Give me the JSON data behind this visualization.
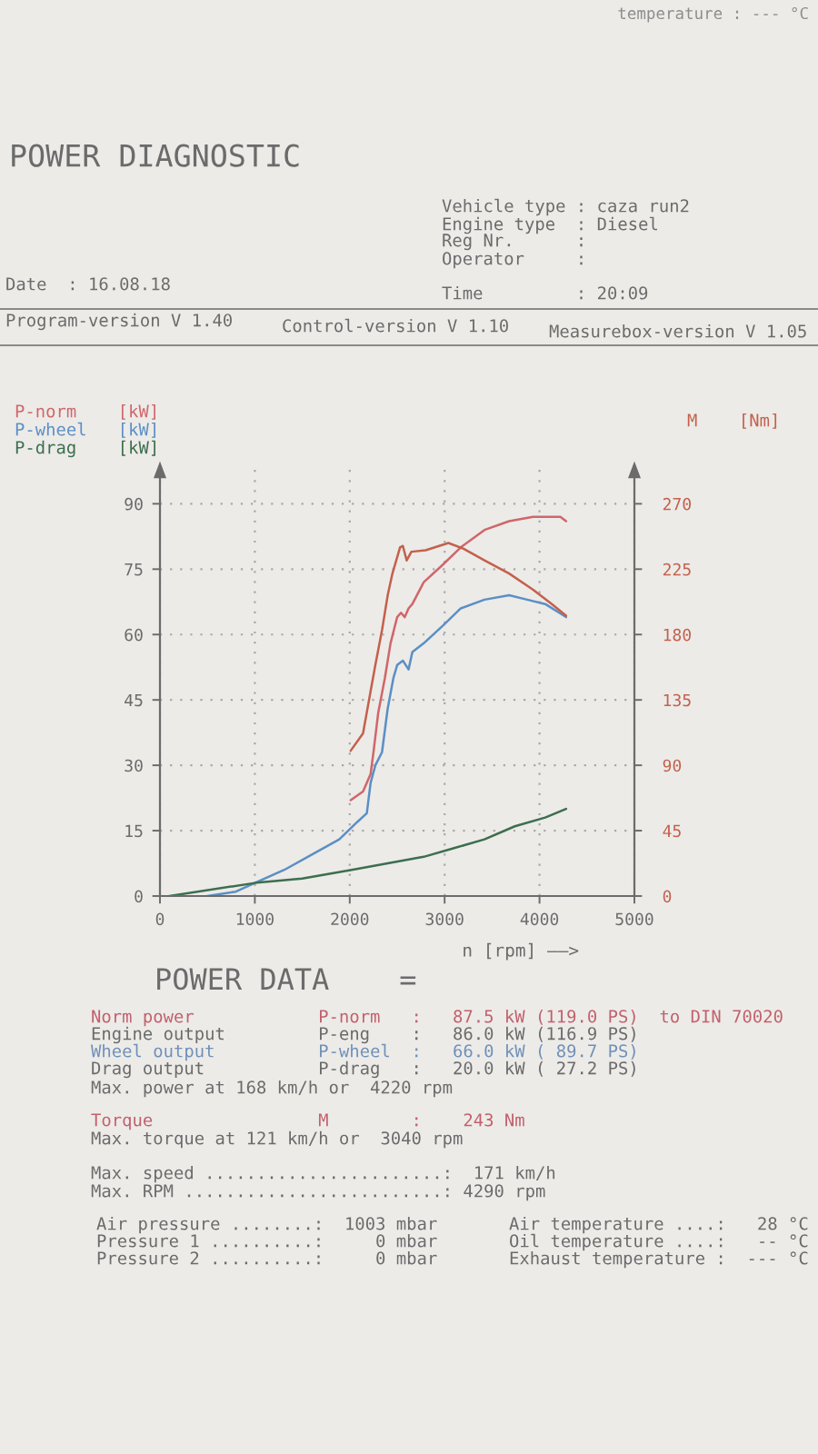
{
  "chart_data": {
    "type": "line",
    "title": "POWER DIAGNOSTIC",
    "xlabel": "n [rpm] ——>",
    "xlim": [
      0,
      5000
    ],
    "xticks": [
      0,
      1000,
      2000,
      3000,
      4000,
      5000
    ],
    "ylim": [
      0,
      98
    ],
    "yticks": [
      0,
      15,
      30,
      45,
      60,
      75,
      90
    ],
    "y2lim": [
      0,
      294
    ],
    "y2ticks": [
      0,
      45,
      90,
      135,
      180,
      225,
      270
    ],
    "grid": true,
    "series": [
      {
        "name": "P-norm    [kW]",
        "color": "#d0666a",
        "x": [
          2010,
          2140,
          2220,
          2250,
          2300,
          2370,
          2430,
          2500,
          2540,
          2580,
          2620,
          2660,
          2780,
          2980,
          3170,
          3420,
          3680,
          3930,
          4130,
          4220,
          4280
        ],
        "values": [
          22,
          24,
          28,
          33,
          42,
          50,
          58,
          64,
          65,
          64,
          66,
          67,
          72,
          76,
          80,
          84,
          86,
          87,
          87,
          87,
          86
        ]
      },
      {
        "name": "P-wheel   [kW]",
        "color": "#5b8fc4",
        "x": [
          500,
          800,
          1000,
          1310,
          1640,
          1890,
          2080,
          2180,
          2220,
          2270,
          2340,
          2400,
          2460,
          2500,
          2560,
          2620,
          2660,
          2780,
          2980,
          3170,
          3420,
          3680,
          3870,
          4060,
          4280
        ],
        "values": [
          0,
          1,
          3,
          6,
          10,
          13,
          17,
          19,
          26,
          30,
          33,
          43,
          50,
          53,
          54,
          52,
          56,
          58,
          62,
          66,
          68,
          69,
          68,
          67,
          64
        ]
      },
      {
        "name": "P-drag    [kW]",
        "color": "#3d6e4e",
        "x": [
          100,
          1000,
          1500,
          2020,
          2780,
          3100,
          3420,
          3740,
          4060,
          4280
        ],
        "values": [
          0,
          3,
          4,
          6,
          9,
          11,
          13,
          16,
          18,
          20
        ]
      },
      {
        "name": "M    [Nm]",
        "color": "#c4604c",
        "axis": "y2",
        "x": [
          2010,
          2140,
          2220,
          2270,
          2340,
          2400,
          2450,
          2530,
          2560,
          2600,
          2650,
          2800,
          3040,
          3200,
          3420,
          3680,
          3930,
          4130,
          4280
        ],
        "values": [
          100,
          112,
          141,
          159,
          183,
          207,
          222,
          240,
          241,
          231,
          237,
          238,
          243,
          239,
          231,
          222,
          211,
          201,
          193
        ]
      }
    ],
    "annotations": [
      "temperature : --- °C",
      "Vehicle type : caza run2",
      "Engine type  : Diesel",
      "Reg Nr.      :",
      "Operator     :",
      "Date  : 16.08.18",
      "Time         : 20:09",
      "Program-version V 1.40",
      "Control-version V 1.10",
      "Measurebox-version V 1.05",
      "POWER DATA    =",
      "Norm power            P-norm   :   87.5 kW (119.0 PS)  to DIN 70020",
      "Engine output         P-eng    :   86.0 kW (116.9 PS)",
      "Wheel output          P-wheel  :   66.0 kW ( 89.7 PS)",
      "Drag output           P-drag   :   20.0 kW ( 27.2 PS)",
      "Max. power at 168 km/h or  4220 rpm",
      "Torque                M        :    243 Nm",
      "Max. torque at 121 km/h or  3040 rpm",
      "Max. speed .......................:  171 km/h",
      "Max. RPM .........................: 4290 rpm",
      "Air pressure ........:  1003 mbar",
      "Pressure 1 ..........:     0 mbar",
      "Pressure 2 ..........:     0 mbar",
      "Air temperature ....:   28 °C",
      "Oil temperature ....:   -- °C",
      "Exhaust temperature :  --- °C"
    ]
  }
}
